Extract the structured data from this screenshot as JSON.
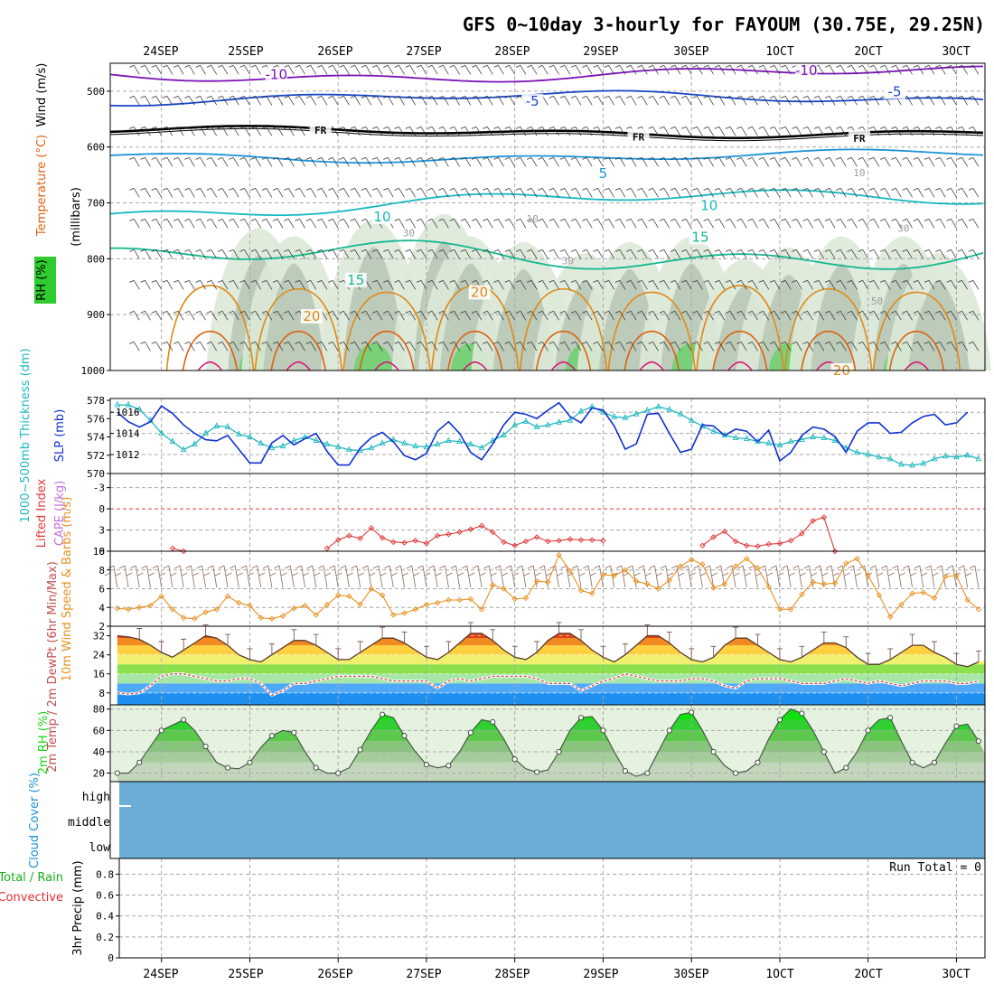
{
  "title": "GFS 0~10day 3-hourly for FAYOUM (30.75E, 29.25N)",
  "date_labels": [
    "24SEP",
    "25SEP",
    "26SEP",
    "27SEP",
    "28SEP",
    "29SEP",
    "30SEP",
    "1OCT",
    "2OCT",
    "3OCT"
  ],
  "colors": {
    "frame": "#000000",
    "grid": "#a8a8a8",
    "purple": "#7a12b6",
    "blue": "#1848c8",
    "lightblue": "#1b93d8",
    "teal": "#16b8c0",
    "green15": "#14b890",
    "orange": "#e08a18",
    "darkorange": "#e06010",
    "magenta": "#e0107a",
    "slp": "#1030d0",
    "thick": "#20b8c0",
    "li": "#e03838",
    "cape": "#c070e0",
    "windspd": "#e89020",
    "dewpt": "#c05050",
    "rh_fill": "#18d818",
    "cloud": "#6aaed6",
    "ltgreen": "#e6f2e0"
  },
  "chart_data": [
    {
      "id": "upper_air",
      "type": "contour",
      "ylabel": "(millibars)",
      "side_labels": [
        "Wind (m/s)",
        "Temperature (°C)",
        "RH (%)"
      ],
      "y_ticks": [
        500,
        600,
        700,
        800,
        900,
        1000
      ],
      "ylim": [
        450,
        1000
      ],
      "isotherm_labels": [
        {
          "text": "-10",
          "day": 1.3,
          "p": 470
        },
        {
          "text": "-10",
          "day": 7.3,
          "p": 463
        },
        {
          "text": "-5",
          "day": 4.2,
          "p": 518
        },
        {
          "text": "-5",
          "day": 8.3,
          "p": 501
        },
        {
          "text": "FR",
          "day": 1.8,
          "p": 568
        },
        {
          "text": "FR",
          "day": 5.4,
          "p": 580
        },
        {
          "text": "FR",
          "day": 7.9,
          "p": 583
        },
        {
          "text": "5",
          "day": 5.0,
          "p": 647
        },
        {
          "text": "10",
          "day": 2.5,
          "p": 725
        },
        {
          "text": "10",
          "day": 6.2,
          "p": 705
        },
        {
          "text": "15",
          "day": 2.2,
          "p": 838
        },
        {
          "text": "15",
          "day": 6.1,
          "p": 761
        },
        {
          "text": "20",
          "day": 1.7,
          "p": 903
        },
        {
          "text": "20",
          "day": 3.6,
          "p": 860
        },
        {
          "text": "20",
          "day": 7.7,
          "p": 1000
        }
      ],
      "rh_labels": [
        {
          "text": "30",
          "day": 2.8,
          "p": 760
        },
        {
          "text": "30",
          "day": 4.6,
          "p": 810
        },
        {
          "text": "30",
          "day": 8.4,
          "p": 752
        },
        {
          "text": "10",
          "day": 4.2,
          "p": 735
        },
        {
          "text": "10",
          "day": 7.9,
          "p": 652
        },
        {
          "text": "50",
          "day": 8.1,
          "p": 882
        }
      ]
    },
    {
      "id": "slp_thickness",
      "type": "line",
      "ylabel": "SLP (mb)",
      "y2label": "1000~500mb Thickness (dm)",
      "y_ticks": [
        1012,
        1014,
        1016
      ],
      "ylim": [
        1010.2,
        1017.3
      ],
      "y2_ticks": [
        570,
        572,
        574,
        576,
        578
      ],
      "y2lim": [
        570,
        578.2
      ],
      "series": [
        {
          "name": "SLP (mb)",
          "values": [
            1016.0,
            1015.1,
            1014.6,
            1015.1,
            1016.6,
            1015.9,
            1014.8,
            1014.0,
            1013.4,
            1013.3,
            1013.8,
            1012.5,
            1011.2,
            1011.2,
            1013.1,
            1013.8,
            1012.9,
            1013.5,
            1014.0,
            1012.3,
            1011.0,
            1011.0,
            1012.6,
            1013.6,
            1014.1,
            1013.2,
            1011.9,
            1011.5,
            1012.1,
            1014.2,
            1015.1,
            1014.0,
            1012.2,
            1011.5,
            1013.0,
            1014.8,
            1016.0,
            1015.8,
            1015.4,
            1016.2,
            1016.9,
            1015.6,
            1015.0,
            1016.4,
            1016.2,
            1014.7,
            1012.5,
            1013.0,
            1015.8,
            1015.9,
            1014.0,
            1012.2,
            1012.5,
            1014.8,
            1014.7,
            1013.8,
            1014.4,
            1014.2,
            1013.2,
            1014.3,
            1011.4,
            1012.2,
            1013.8,
            1014.6,
            1014.4,
            1013.7,
            1012.2,
            1014.2,
            1015.0,
            1015.0,
            1014.0,
            1014.1,
            1015.0,
            1015.6,
            1015.8,
            1014.8,
            1015.0,
            1016.0
          ]
        },
        {
          "name": "1000~500mb Thickness (dm)",
          "values": [
            577.5,
            577.5,
            577.0,
            575.8,
            574.4,
            573.5,
            572.6,
            573.2,
            574.4,
            575.2,
            575.1,
            574.3,
            574.0,
            573.3,
            572.8,
            573.0,
            573.6,
            574.0,
            573.6,
            573.2,
            572.9,
            572.6,
            572.5,
            572.8,
            573.3,
            573.7,
            573.3,
            573.0,
            572.9,
            573.2,
            573.6,
            573.5,
            573.2,
            572.8,
            573.6,
            574.2,
            575.3,
            575.7,
            575.1,
            575.3,
            575.6,
            575.8,
            576.8,
            577.3,
            576.7,
            576.2,
            576.1,
            576.5,
            576.9,
            577.3,
            577.0,
            576.5,
            575.8,
            575.2,
            574.6,
            574.2,
            573.9,
            573.8,
            573.5,
            573.3,
            573.1,
            573.5,
            573.7,
            574.0,
            573.9,
            573.6,
            572.8,
            572.3,
            572.1,
            571.8,
            571.6,
            571.0,
            570.9,
            571.1,
            571.6,
            571.9,
            571.8,
            572.0,
            571.6,
            571.8,
            572.0
          ]
        }
      ]
    },
    {
      "id": "li_cape",
      "type": "line",
      "ylabel": "CAPE (J/kg)",
      "y2label": "Lifted Index",
      "y_ticks": [
        6,
        3,
        0,
        -3
      ],
      "ylim": [
        6,
        -5
      ],
      "series": [
        {
          "name": "Lifted Index",
          "segments": [
            {
              "start": 5,
              "values": [
                5.6,
                6.0
              ]
            },
            {
              "start": 19,
              "values": [
                5.6,
                4.4,
                3.8,
                4.2,
                2.7,
                4.1,
                4.7,
                4.8,
                4.5,
                4.9,
                3.8,
                3.6,
                3.3,
                2.9,
                2.4,
                3.3,
                4.7,
                5.2,
                4.6,
                4.0,
                4.6,
                4.5,
                4.3,
                4.4,
                4.4,
                4.5
              ]
            },
            {
              "start": 53,
              "values": [
                5.2,
                4.0,
                3.2,
                4.6,
                5.2,
                5.3,
                5.0,
                4.9,
                4.5,
                3.5,
                1.7,
                1.2,
                6.0
              ]
            }
          ]
        }
      ]
    },
    {
      "id": "wind10m",
      "type": "line",
      "ylabel": "10m Wind Speed & Barbs (m/s)",
      "y_ticks": [
        2,
        4,
        6,
        8,
        10
      ],
      "ylim": [
        2,
        10
      ],
      "series": [
        {
          "name": "10m Wind Speed (m/s)",
          "values": [
            3.9,
            3.8,
            4.0,
            4.2,
            5.2,
            3.8,
            2.9,
            2.8,
            3.5,
            3.8,
            5.2,
            4.5,
            4.2,
            2.9,
            2.8,
            3.1,
            3.9,
            4.2,
            3.2,
            4.3,
            5.3,
            5.2,
            4.3,
            6.0,
            5.3,
            3.2,
            3.4,
            3.8,
            4.3,
            4.5,
            4.8,
            4.8,
            4.9,
            3.8,
            6.4,
            6.0,
            4.9,
            5.0,
            6.8,
            6.7,
            9.6,
            7.9,
            5.8,
            5.5,
            7.5,
            7.4,
            8.0,
            6.8,
            6.5,
            6.0,
            6.9,
            8.4,
            9.1,
            8.6,
            6.1,
            6.5,
            8.4,
            9.2,
            8.2,
            6.2,
            3.8,
            3.8,
            5.4,
            6.7,
            6.5,
            6.6,
            8.7,
            9.2,
            7.4,
            5.3,
            3.0,
            4.3,
            5.5,
            5.6,
            5.0,
            7.3,
            7.4,
            4.8,
            3.8,
            4.2,
            4.6
          ]
        }
      ]
    },
    {
      "id": "temp2m",
      "type": "area",
      "ylabel": "2m Temp / 2m DewPt (6hr Min/Max)",
      "y_ticks": [
        8,
        16,
        24,
        32
      ],
      "ylim": [
        3,
        36
      ],
      "series": [
        {
          "name": "2m Temp",
          "values": [
            32,
            31.5,
            30.5,
            28,
            25,
            23,
            26,
            29,
            32,
            31,
            28,
            24,
            22,
            21,
            24,
            27,
            30,
            30,
            28,
            25,
            22,
            22,
            25,
            28,
            31,
            31,
            29,
            26,
            23,
            22,
            25,
            29,
            33,
            33,
            30,
            26,
            23,
            22,
            25,
            30,
            33,
            33,
            30,
            26,
            23,
            21,
            24,
            28,
            32,
            32,
            29,
            25,
            22,
            21,
            23,
            28,
            31,
            31,
            28,
            25,
            22,
            21,
            23,
            26,
            29,
            29,
            27,
            23,
            20,
            20,
            22,
            25,
            28,
            28,
            25,
            23,
            20,
            19,
            21,
            22,
            24
          ]
        },
        {
          "name": "2m DewPt",
          "values": [
            8,
            7.5,
            8,
            11,
            15,
            16,
            16,
            15,
            14,
            13,
            13,
            14,
            14,
            12,
            7,
            9,
            12,
            12,
            13,
            14,
            15,
            15,
            15,
            15,
            14,
            13,
            13,
            13,
            13,
            10,
            13,
            14,
            13,
            14,
            15,
            15,
            15,
            15,
            14,
            12,
            12,
            12,
            9,
            11,
            13,
            14,
            16,
            15,
            14,
            13,
            13,
            13,
            14,
            14,
            13,
            11,
            10,
            13,
            14,
            14,
            14,
            13,
            12,
            12,
            12,
            13,
            14,
            13,
            12,
            13,
            12,
            11,
            12,
            13,
            13,
            13,
            12,
            12,
            13,
            14,
            15
          ]
        }
      ]
    },
    {
      "id": "rh2m",
      "type": "area",
      "ylabel": "2m RH (%)",
      "y_ticks": [
        20,
        40,
        60,
        80
      ],
      "ylim": [
        12,
        84
      ],
      "series": [
        {
          "name": "2m RH (%)",
          "values": [
            20,
            20,
            30,
            45,
            60,
            65,
            70,
            60,
            45,
            30,
            25,
            24,
            30,
            44,
            55,
            60,
            58,
            40,
            25,
            20,
            20,
            25,
            42,
            60,
            75,
            72,
            55,
            40,
            28,
            25,
            27,
            40,
            58,
            70,
            68,
            52,
            33,
            24,
            21,
            23,
            40,
            60,
            72,
            73,
            60,
            40,
            22,
            17,
            20,
            40,
            60,
            75,
            77,
            60,
            40,
            27,
            20,
            22,
            30,
            52,
            70,
            80,
            76,
            60,
            40,
            20,
            25,
            40,
            60,
            70,
            72,
            50,
            30,
            25,
            30,
            48,
            64,
            66,
            50,
            30,
            26,
            40,
            60,
            70,
            62
          ]
        }
      ]
    },
    {
      "id": "cloud",
      "type": "area",
      "ylabel": "Cloud Cover (%)",
      "categories": [
        "high",
        "middle",
        "low"
      ],
      "values": [
        0,
        0,
        0
      ]
    },
    {
      "id": "precip",
      "type": "bar",
      "ylabel": "3hr Precip (mm)",
      "legend": [
        "Total / Rain",
        "Convective"
      ],
      "y_ticks": [
        0,
        0.2,
        0.4,
        0.6,
        0.8
      ],
      "ylim": [
        0,
        0.95
      ],
      "run_total": "Run Total = 0",
      "values": []
    }
  ]
}
